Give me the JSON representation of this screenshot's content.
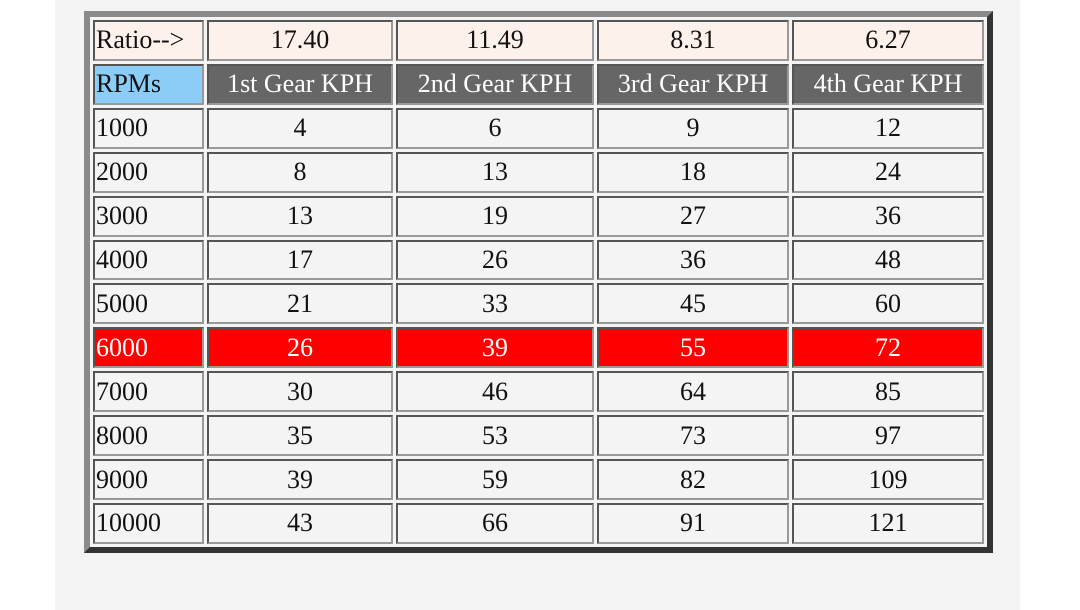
{
  "table": {
    "ratio_label": "Ratio-->",
    "ratios": [
      "17.40",
      "11.49",
      "8.31",
      "6.27"
    ],
    "rpm_header": "RPMs",
    "gear_headers": [
      "1st Gear KPH",
      "2nd Gear KPH",
      "3rd Gear KPH",
      "4th Gear KPH"
    ],
    "highlighted_rpm": "6000",
    "colors": {
      "highlight": "#ff0000",
      "header_bg": "#666666",
      "rpm_header_bg": "#8ccdf8",
      "ratio_bg": "#fdf1ec"
    },
    "rows": [
      {
        "rpm": "1000",
        "speeds": [
          "4",
          "6",
          "9",
          "12"
        ]
      },
      {
        "rpm": "2000",
        "speeds": [
          "8",
          "13",
          "18",
          "24"
        ]
      },
      {
        "rpm": "3000",
        "speeds": [
          "13",
          "19",
          "27",
          "36"
        ]
      },
      {
        "rpm": "4000",
        "speeds": [
          "17",
          "26",
          "36",
          "48"
        ]
      },
      {
        "rpm": "5000",
        "speeds": [
          "21",
          "33",
          "45",
          "60"
        ]
      },
      {
        "rpm": "6000",
        "speeds": [
          "26",
          "39",
          "55",
          "72"
        ]
      },
      {
        "rpm": "7000",
        "speeds": [
          "30",
          "46",
          "64",
          "85"
        ]
      },
      {
        "rpm": "8000",
        "speeds": [
          "35",
          "53",
          "73",
          "97"
        ]
      },
      {
        "rpm": "9000",
        "speeds": [
          "39",
          "59",
          "82",
          "109"
        ]
      },
      {
        "rpm": "10000",
        "speeds": [
          "43",
          "66",
          "91",
          "121"
        ]
      }
    ]
  }
}
